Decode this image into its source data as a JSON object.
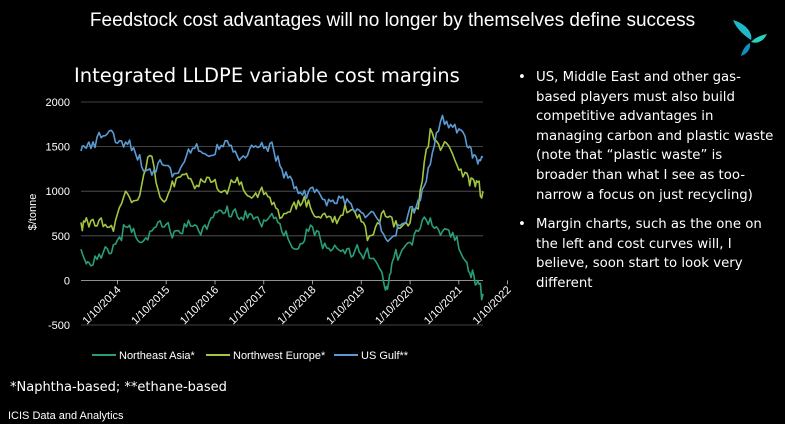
{
  "slide": {
    "title": "Feedstock cost advantages will no longer  by themselves define success",
    "bullets": [
      "US, Middle East and other gas-based players must also build competitive advantages in managing carbon and plastic waste (note that “plastic waste” is broader than what I see as too-narrow a focus on just recycling)",
      "Margin charts, such as the one on the left and cost curves will, I believe, soon start to look very different"
    ],
    "footnote": "*Naphtha-based; **ethane-based",
    "source": "ICIS Data and Analytics",
    "logo": "icis-logo"
  },
  "chart_data": {
    "type": "line",
    "title": "Integrated LLDPE variable cost margins",
    "ylabel": "$/tonne",
    "xlabel": "",
    "ylim": [
      -500,
      2000
    ],
    "xlim": [
      "2014-01-01",
      "2022-03-31"
    ],
    "yticks": [
      -500,
      0,
      500,
      1000,
      1500,
      2000
    ],
    "xticks": [
      "1/10/2014",
      "1/10/2015",
      "1/10/2016",
      "1/10/2017",
      "1/10/2018",
      "1/10/2019",
      "1/10/2020",
      "1/10/2021",
      "1/10/2022"
    ],
    "grid": "horizontal",
    "legend": "bottom",
    "series": [
      {
        "name": "Northeast Asia*",
        "color": "#2a9d78",
        "x": [
          "2014-01-01",
          "2014-03-01",
          "2014-06-01",
          "2014-09-01",
          "2014-12-01",
          "2015-03-01",
          "2015-06-01",
          "2015-09-01",
          "2015-12-01",
          "2016-03-01",
          "2016-06-01",
          "2016-09-01",
          "2016-12-01",
          "2017-03-01",
          "2017-06-01",
          "2017-09-01",
          "2017-12-01",
          "2018-03-01",
          "2018-06-01",
          "2018-09-01",
          "2018-12-01",
          "2019-03-01",
          "2019-06-01",
          "2019-09-01",
          "2019-12-01",
          "2020-03-01",
          "2020-04-15",
          "2020-06-01",
          "2020-09-01",
          "2020-12-01",
          "2021-03-01",
          "2021-06-01",
          "2021-09-01",
          "2021-12-01",
          "2022-02-01",
          "2022-03-31"
        ],
        "y": [
          350,
          200,
          250,
          400,
          600,
          450,
          550,
          600,
          550,
          600,
          550,
          700,
          750,
          800,
          700,
          650,
          750,
          500,
          350,
          550,
          450,
          350,
          300,
          400,
          250,
          100,
          -100,
          250,
          400,
          550,
          700,
          550,
          450,
          200,
          -50,
          -150
        ]
      },
      {
        "name": "Northwest Europe*",
        "color": "#a3c540",
        "x": [
          "2014-01-01",
          "2014-03-01",
          "2014-06-01",
          "2014-09-01",
          "2014-12-01",
          "2015-03-01",
          "2015-06-01",
          "2015-09-01",
          "2015-12-01",
          "2016-03-01",
          "2016-06-01",
          "2016-09-01",
          "2016-12-01",
          "2017-03-01",
          "2017-06-01",
          "2017-09-01",
          "2017-12-01",
          "2018-03-01",
          "2018-06-01",
          "2018-09-01",
          "2018-12-01",
          "2019-03-01",
          "2019-06-01",
          "2019-09-01",
          "2019-12-01",
          "2020-03-01",
          "2020-06-01",
          "2020-09-01",
          "2020-12-01",
          "2021-03-01",
          "2021-06-01",
          "2021-09-01",
          "2021-12-01",
          "2022-02-01",
          "2022-03-31"
        ],
        "y": [
          650,
          600,
          700,
          550,
          1000,
          900,
          1400,
          900,
          1050,
          1200,
          1050,
          1100,
          1000,
          1100,
          950,
          1000,
          850,
          750,
          800,
          900,
          700,
          650,
          850,
          700,
          500,
          750,
          600,
          650,
          800,
          1700,
          1500,
          1350,
          1200,
          1050,
          1000
        ]
      },
      {
        "name": "US Gulf**",
        "color": "#5b9bd5",
        "x": [
          "2014-01-01",
          "2014-03-01",
          "2014-06-01",
          "2014-09-01",
          "2014-12-01",
          "2015-03-01",
          "2015-06-01",
          "2015-09-01",
          "2015-12-01",
          "2016-03-01",
          "2016-06-01",
          "2016-09-01",
          "2016-12-01",
          "2017-03-01",
          "2017-06-01",
          "2017-09-01",
          "2017-12-01",
          "2018-03-01",
          "2018-06-01",
          "2018-09-01",
          "2018-12-01",
          "2019-03-01",
          "2019-06-01",
          "2019-09-01",
          "2019-12-01",
          "2020-03-01",
          "2020-06-01",
          "2020-09-01",
          "2020-12-01",
          "2021-03-01",
          "2021-06-01",
          "2021-09-01",
          "2021-12-01",
          "2022-02-01",
          "2022-03-31"
        ],
        "y": [
          1450,
          1550,
          1600,
          1650,
          1550,
          1350,
          1250,
          1300,
          1200,
          1400,
          1450,
          1400,
          1500,
          1450,
          1400,
          1500,
          1550,
          1150,
          1050,
          1000,
          950,
          900,
          850,
          800,
          750,
          550,
          500,
          650,
          900,
          1300,
          1850,
          1750,
          1500,
          1400,
          1380
        ]
      }
    ]
  }
}
